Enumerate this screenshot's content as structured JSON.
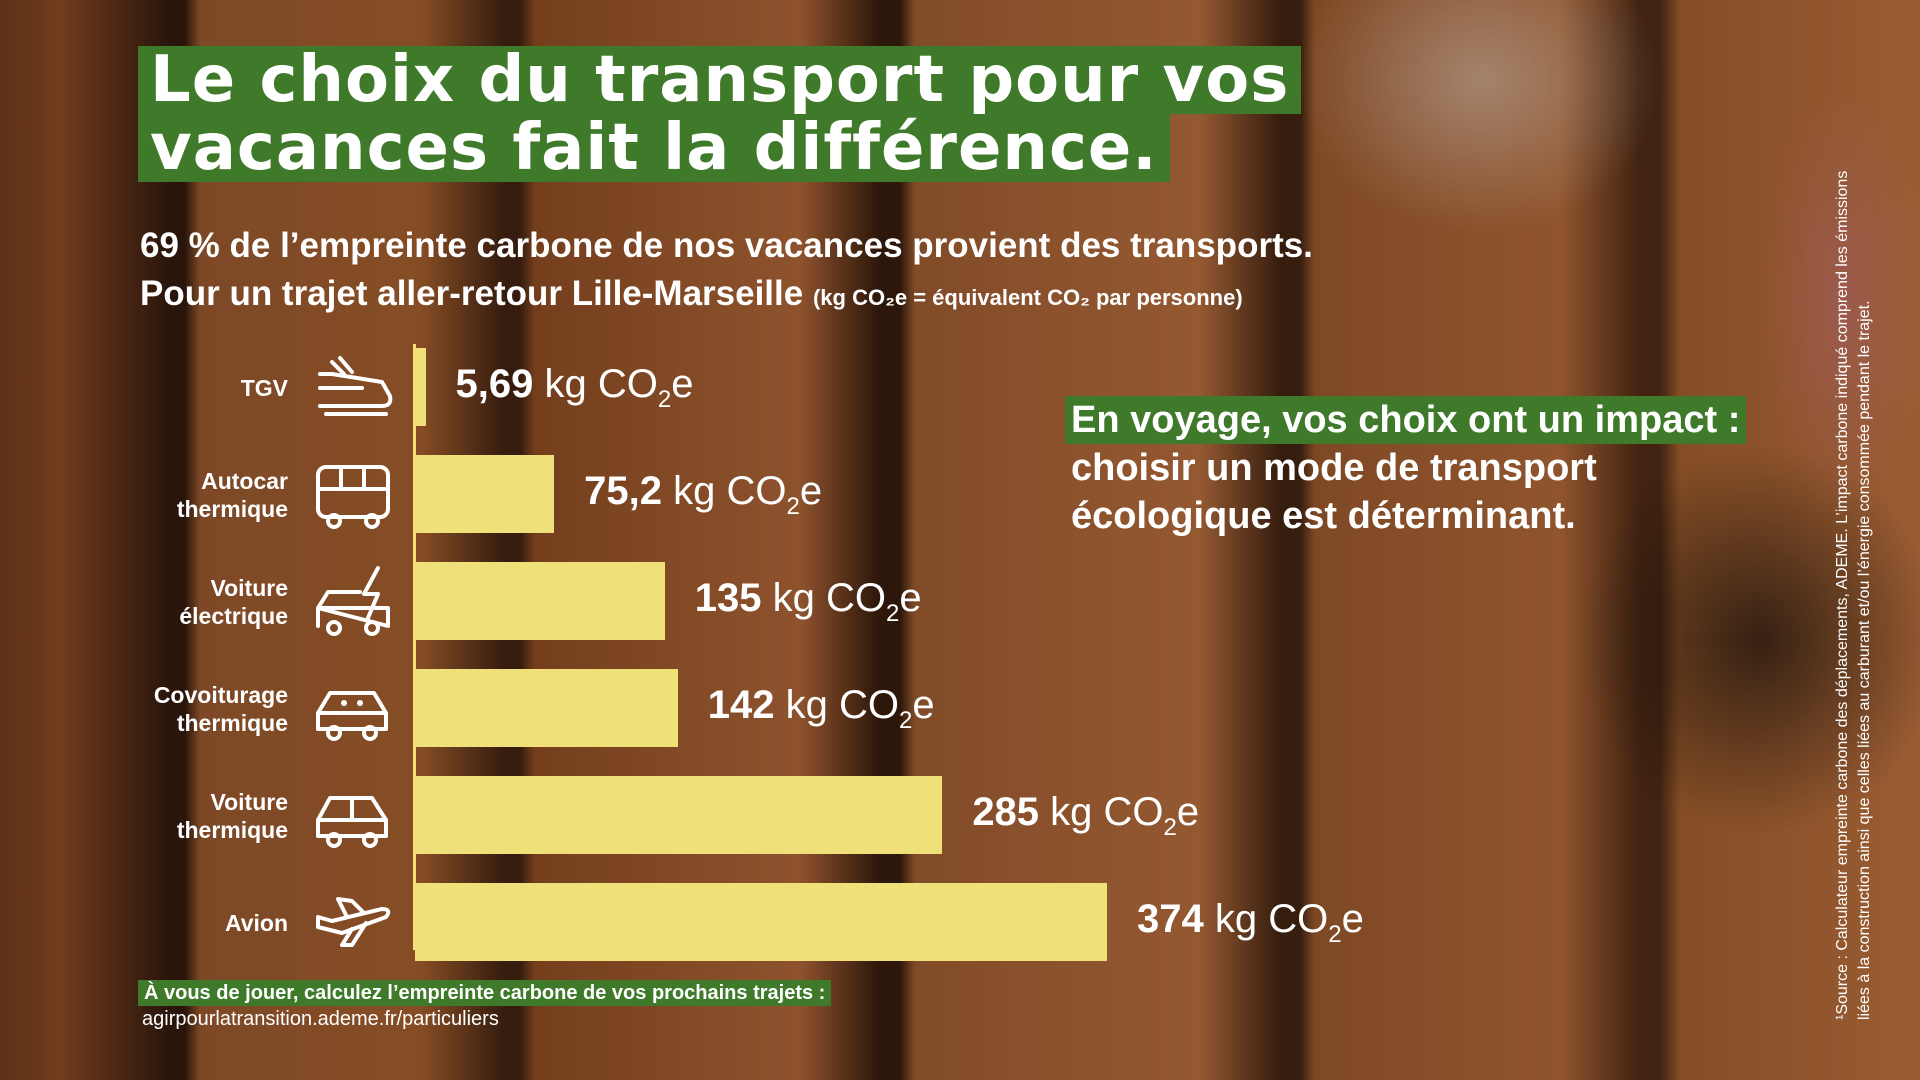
{
  "title": {
    "line1": "Le choix du transport pour vos",
    "line2": "vacances fait la différence."
  },
  "subtitle": {
    "line1": "69 % de l’empreinte carbone de nos vacances provient des transports.",
    "line2": "Pour un trajet aller-retour Lille-Marseille",
    "units_note": "(kg CO₂e = équivalent CO₂ par personne)"
  },
  "chart_data": {
    "type": "bar",
    "orientation": "horizontal",
    "categories": [
      {
        "line1": "TGV",
        "line2": ""
      },
      {
        "line1": "Autocar",
        "line2": "thermique"
      },
      {
        "line1": "Voiture",
        "line2": "électrique"
      },
      {
        "line1": "Covoiturage",
        "line2": "thermique"
      },
      {
        "line1": "Voiture",
        "line2": "thermique"
      },
      {
        "line1": "Avion",
        "line2": ""
      }
    ],
    "values": [
      5.69,
      75.2,
      135,
      142,
      285,
      374
    ],
    "value_labels": [
      "5,69",
      "75,2",
      "135",
      "142",
      "285",
      "374"
    ],
    "unit": "kg CO2e",
    "xlim": [
      0,
      374
    ],
    "bar_color": "#efe07a",
    "icons": [
      "train-icon",
      "bus-icon",
      "electric-car-icon",
      "carpool-icon",
      "car-icon",
      "plane-icon"
    ]
  },
  "callout": {
    "highlight": "En voyage, vos choix ont un impact :",
    "line2": "choisir un mode de transport",
    "line3": "écologique est déterminant."
  },
  "footer": {
    "cta": "À vous de jouer, calculez l’empreinte carbone de vos prochains trajets :",
    "url": "agirpourlatransition.ademe.fr/particuliers"
  },
  "source": {
    "line1": "¹Source : Calculateur empreinte carbone des déplacements, ADEME. L’impact carbone indiqué comprend les émissions",
    "line2": "liées à la construction ainsi que celles liées au carburant et/ou l’énergie consommée pendant le trajet."
  },
  "colors": {
    "accent_green": "#3f7a2a",
    "bar_yellow": "#efe07a",
    "text": "#ffffff"
  }
}
